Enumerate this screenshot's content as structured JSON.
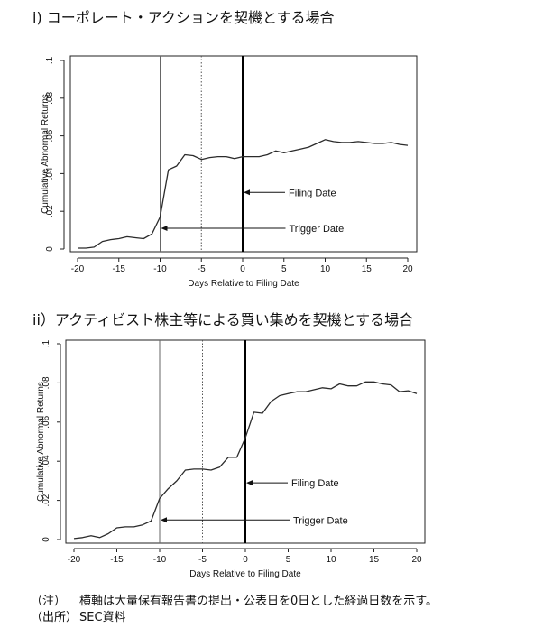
{
  "panels": [
    {
      "title": "i) コーポレート・アクションを契機とする場合"
    },
    {
      "title": "ii）アクティビスト株主等による買い集めを契機とする場合"
    }
  ],
  "notes": [
    {
      "key": "（注）",
      "text": "横軸は大量保有報告書の提出・公表日を0日とした経過日数を示す。"
    },
    {
      "key": "（出所）",
      "text": "SEC資料"
    }
  ],
  "chart_data": [
    {
      "type": "line",
      "title": "i) コーポレート・アクションを契機とする場合",
      "xlabel": "Days Relative to Filing Date",
      "ylabel": "Cumulative Abnormal Returns",
      "xlim": [
        -20,
        20
      ],
      "ylim": [
        0,
        0.1
      ],
      "xticks": [
        -20,
        -15,
        -10,
        -5,
        0,
        5,
        10,
        15,
        20
      ],
      "xtick_labels": [
        "-20",
        "-15",
        "-10",
        "-5",
        "0",
        "5",
        "10",
        "15",
        "20"
      ],
      "yticks": [
        0,
        0.02,
        0.04,
        0.06,
        0.08,
        0.1
      ],
      "ytick_labels": [
        "0",
        ".02",
        ".04",
        ".06",
        ".08",
        ".1"
      ],
      "vlines": [
        {
          "x": -10,
          "style": "thin"
        },
        {
          "x": -5,
          "style": "dotted"
        },
        {
          "x": 0,
          "style": "bold"
        }
      ],
      "annotations": [
        {
          "text": "Filing Date",
          "x": 0,
          "y": 0.03
        },
        {
          "text": "Trigger Date",
          "x": -10,
          "y": 0.011
        }
      ],
      "series": [
        {
          "x": [
            -20,
            -19,
            -18,
            -17,
            -16,
            -15,
            -14,
            -13,
            -12,
            -11,
            -10,
            -9,
            -8,
            -7,
            -6,
            -5,
            -4,
            -3,
            -2,
            -1,
            0,
            1,
            2,
            3,
            4,
            5,
            6,
            7,
            8,
            9,
            10,
            11,
            12,
            13,
            14,
            15,
            16,
            17,
            18,
            19,
            20
          ],
          "y": [
            0.0005,
            0.0005,
            0.001,
            0.004,
            0.005,
            0.0055,
            0.0065,
            0.006,
            0.0055,
            0.008,
            0.017,
            0.042,
            0.044,
            0.05,
            0.0495,
            0.0475,
            0.0485,
            0.049,
            0.049,
            0.048,
            0.049,
            0.049,
            0.049,
            0.05,
            0.052,
            0.051,
            0.052,
            0.053,
            0.054,
            0.056,
            0.058,
            0.057,
            0.0565,
            0.0565,
            0.057,
            0.0565,
            0.056,
            0.056,
            0.0565,
            0.0555,
            0.055
          ]
        }
      ]
    },
    {
      "type": "line",
      "title": "ii）アクティビスト株主等による買い集めを契機とする場合",
      "xlabel": "Days Relative to Filing Date",
      "ylabel": "Cumulative Abnormal Returns",
      "xlim": [
        -20,
        20
      ],
      "ylim": [
        0,
        0.1
      ],
      "xticks": [
        -20,
        -15,
        -10,
        -5,
        0,
        5,
        10,
        15,
        20
      ],
      "xtick_labels": [
        "-20",
        "-15",
        "-10",
        "-5",
        "0",
        "5",
        "10",
        "15",
        "20"
      ],
      "yticks": [
        0,
        0.02,
        0.04,
        0.06,
        0.08,
        0.1
      ],
      "ytick_labels": [
        "0",
        ".02",
        ".04",
        ".06",
        ".08",
        ".1"
      ],
      "vlines": [
        {
          "x": -10,
          "style": "thin"
        },
        {
          "x": -5,
          "style": "dotted"
        },
        {
          "x": 0,
          "style": "bold"
        }
      ],
      "annotations": [
        {
          "text": "Filing Date",
          "x": 0,
          "y": 0.029
        },
        {
          "text": "Trigger Date",
          "x": -10,
          "y": 0.01
        }
      ],
      "series": [
        {
          "x": [
            -20,
            -19,
            -18,
            -17,
            -16,
            -15,
            -14,
            -13,
            -12,
            -11,
            -10,
            -9,
            -8,
            -7,
            -6,
            -5,
            -4,
            -3,
            -2,
            -1,
            0,
            1,
            2,
            3,
            4,
            5,
            6,
            7,
            8,
            9,
            10,
            11,
            12,
            13,
            14,
            15,
            16,
            17,
            18,
            19,
            20
          ],
          "y": [
            0.0005,
            0.001,
            0.002,
            0.001,
            0.003,
            0.006,
            0.0065,
            0.0065,
            0.0075,
            0.0095,
            0.021,
            0.026,
            0.03,
            0.0355,
            0.036,
            0.036,
            0.0355,
            0.037,
            0.042,
            0.042,
            0.052,
            0.065,
            0.0645,
            0.0705,
            0.0735,
            0.0745,
            0.0755,
            0.0755,
            0.0765,
            0.0775,
            0.077,
            0.0795,
            0.0785,
            0.0785,
            0.0805,
            0.0805,
            0.0795,
            0.079,
            0.0755,
            0.076,
            0.0745
          ]
        }
      ]
    }
  ]
}
